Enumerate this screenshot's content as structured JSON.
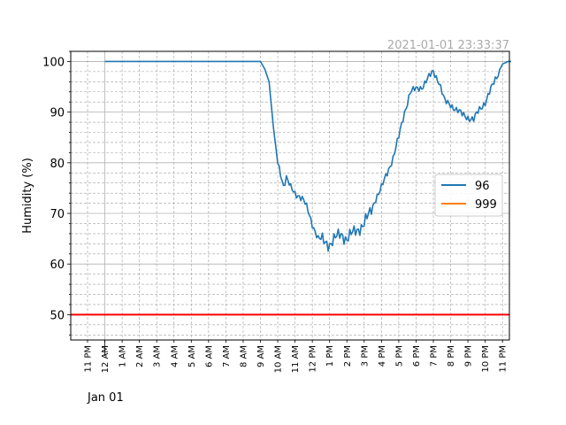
{
  "chart_data": {
    "type": "line",
    "title": "",
    "timestamp": "2021-01-01 23:33:37",
    "ylabel": "Humidity (%)",
    "xlabel": "",
    "date_label": "Jan 01",
    "ylim": [
      45,
      102
    ],
    "xlim": [
      "2020-12-31 23:00",
      "2022-01-01 23:59"
    ],
    "y_ticks": [
      50,
      60,
      70,
      80,
      90,
      100
    ],
    "x_tick_labels": [
      "11 PM",
      "12 AM",
      "1 AM",
      "2 AM",
      "3 AM",
      "4 AM",
      "5 AM",
      "6 AM",
      "7 AM",
      "8 AM",
      "9 AM",
      "10 AM",
      "11 AM",
      "12 PM",
      "1 PM",
      "2 PM",
      "3 PM",
      "4 PM",
      "5 PM",
      "6 PM",
      "7 PM",
      "8 PM",
      "9 PM",
      "10 PM",
      "11 PM"
    ],
    "grid": true,
    "legend_position": "center-right",
    "threshold": {
      "value": 50,
      "color": "#ff0000"
    },
    "series": [
      {
        "name": "96",
        "color": "#1f77b4",
        "x": [
          "00:00",
          "01:00",
          "02:00",
          "03:00",
          "04:00",
          "05:00",
          "06:00",
          "07:00",
          "08:00",
          "09:00",
          "09:15",
          "09:30",
          "09:45",
          "10:00",
          "10:10",
          "10:20",
          "10:30",
          "10:45",
          "11:00",
          "11:15",
          "11:30",
          "11:45",
          "12:00",
          "12:20",
          "12:40",
          "13:00",
          "13:20",
          "13:40",
          "14:00",
          "14:20",
          "14:40",
          "15:00",
          "15:20",
          "15:40",
          "16:00",
          "16:20",
          "16:40",
          "17:00",
          "17:20",
          "17:40",
          "18:00",
          "18:20",
          "18:40",
          "19:00",
          "19:20",
          "19:40",
          "20:00",
          "20:20",
          "20:40",
          "21:00",
          "21:20",
          "21:40",
          "22:00",
          "22:20",
          "22:40",
          "23:00",
          "23:20",
          "23:33"
        ],
        "y": [
          100,
          100,
          100,
          100,
          100,
          100,
          100,
          100,
          100,
          100,
          98.5,
          96,
          87,
          80,
          78,
          75.5,
          77,
          75,
          74,
          73.5,
          72.5,
          70.5,
          68,
          65,
          64.5,
          64,
          65,
          66,
          65,
          66,
          67,
          68,
          70,
          73,
          75,
          78,
          81,
          85,
          90,
          94,
          94.5,
          95,
          96.5,
          98,
          96,
          92,
          91.5,
          90.5,
          89.5,
          89,
          88.5,
          90.5,
          92,
          94.5,
          97,
          99.5,
          100,
          100
        ]
      },
      {
        "name": "999",
        "color": "#ff7f0e",
        "x": [],
        "y": []
      }
    ]
  }
}
